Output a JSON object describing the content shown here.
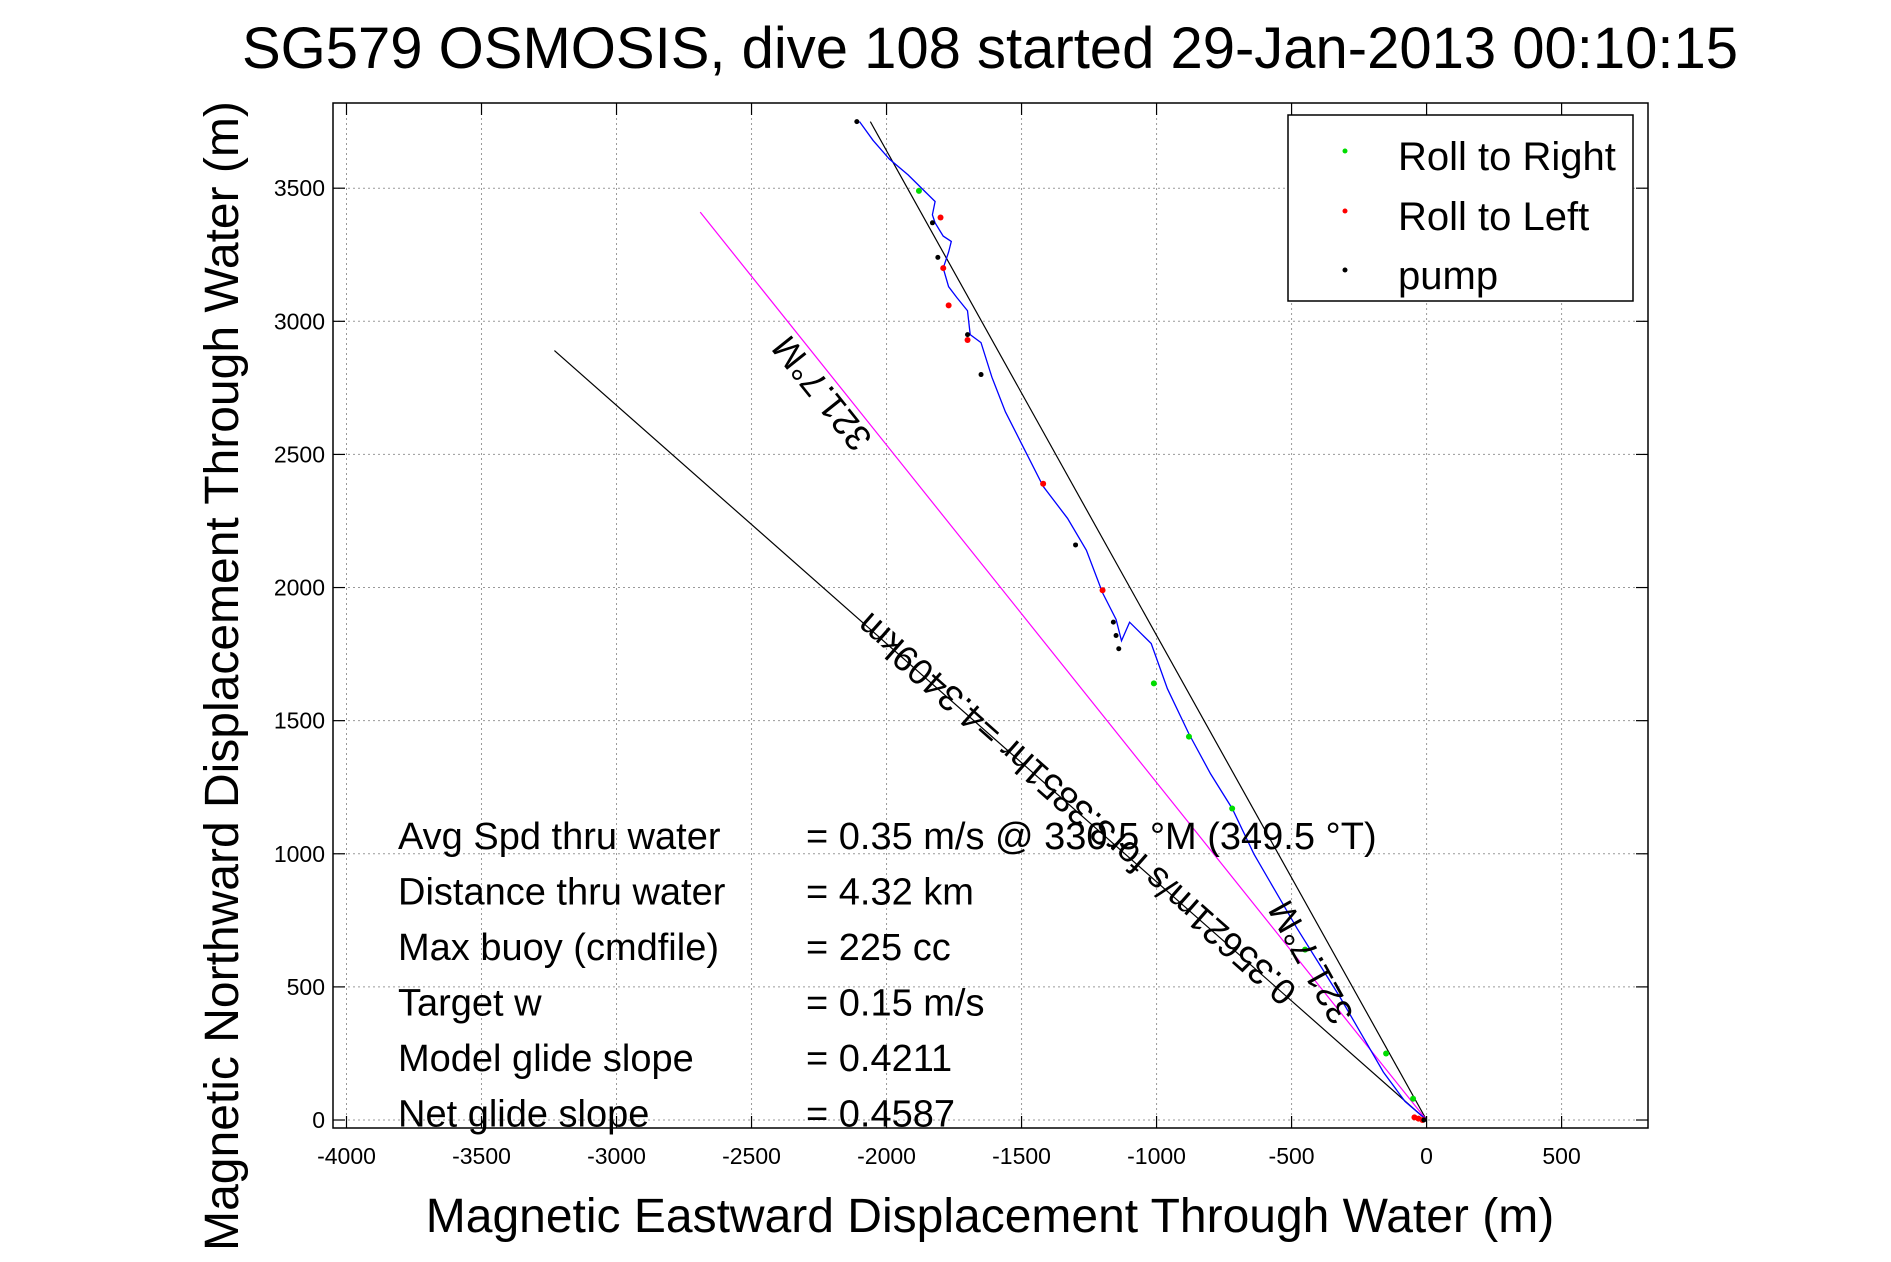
{
  "chart_data": {
    "type": "line",
    "title": "SG579 OSMOSIS, dive 108 started 29-Jan-2013 00:10:15",
    "xlabel": "Magnetic Eastward Displacement Through Water (m)",
    "ylabel": "Magnetic Northward Displacement Through Water (m)",
    "xlim": [
      -4050,
      820
    ],
    "ylim": [
      -30,
      3820
    ],
    "xticks": [
      -4000,
      -3500,
      -3000,
      -2500,
      -2000,
      -1500,
      -1000,
      -500,
      0,
      500
    ],
    "yticks": [
      0,
      500,
      1000,
      1500,
      2000,
      2500,
      3000,
      3500
    ],
    "grid": true,
    "legend_position": "top-right",
    "legend": [
      {
        "label": "Roll to Right",
        "color": "#00dd00"
      },
      {
        "label": "Roll to Left",
        "color": "#ff0000"
      },
      {
        "label": "pump",
        "color": "#000000"
      }
    ],
    "track": {
      "color": "#0000ff",
      "x": [
        0,
        -80,
        -160,
        -240,
        -320,
        -400,
        -480,
        -560,
        -640,
        -720,
        -800,
        -880,
        -960,
        -1020,
        -1100,
        -1130,
        -1150,
        -1200,
        -1260,
        -1330,
        -1420,
        -1500,
        -1560,
        -1610,
        -1650,
        -1690,
        -1700,
        -1740,
        -1770,
        -1790,
        -1770,
        -1760,
        -1790,
        -1820,
        -1830,
        -1820,
        -1860,
        -1920,
        -1990,
        -2050,
        -2100
      ],
      "y": [
        0,
        70,
        180,
        320,
        460,
        590,
        720,
        860,
        1000,
        1170,
        1300,
        1450,
        1620,
        1790,
        1870,
        1800,
        1880,
        1980,
        2140,
        2260,
        2380,
        2540,
        2660,
        2790,
        2920,
        2950,
        3040,
        3090,
        3130,
        3200,
        3260,
        3300,
        3320,
        3370,
        3400,
        3450,
        3490,
        3550,
        3610,
        3680,
        3750
      ]
    },
    "roll_right_points": {
      "color": "#00dd00",
      "x": [
        -50,
        -150,
        -450,
        -720,
        -880,
        -1010,
        -1880
      ],
      "y": [
        80,
        250,
        640,
        1170,
        1440,
        1640,
        3490
      ]
    },
    "roll_left_points": {
      "color": "#ff0000",
      "x": [
        -15,
        -30,
        -45,
        -1200,
        -1420,
        -1700,
        -1770,
        -1790,
        -1800
      ],
      "y": [
        0,
        5,
        10,
        1990,
        2390,
        2930,
        3060,
        3200,
        3390
      ]
    },
    "pump_points": {
      "color": "#000000",
      "x": [
        -10,
        -1140,
        -1150,
        -1160,
        -1300,
        -1650,
        -1700,
        -1810,
        -1830,
        -2110
      ],
      "y": [
        0,
        1770,
        1820,
        1870,
        2160,
        2800,
        2950,
        3240,
        3370,
        3750
      ]
    },
    "reference_lines": [
      {
        "color": "#000000",
        "x": [
          0,
          -2060
        ],
        "y": [
          0,
          3750
        ],
        "label": "321.7°M"
      },
      {
        "color": "#ff00ff",
        "x": [
          0,
          -2690
        ],
        "y": [
          0,
          3410
        ],
        "label": "321.7°M"
      },
      {
        "color": "#000000",
        "x": [
          0,
          -3230
        ],
        "y": [
          0,
          2890
        ],
        "label": "0.35621m/s for3.3851hr =4.3409km"
      }
    ],
    "annotations": [
      {
        "label": "Avg Spd thru water",
        "value": "=  0.35 m/s @ 330.5 °M (349.5 °T)"
      },
      {
        "label": "Distance thru water",
        "value": "=  4.32 km"
      },
      {
        "label": "Max buoy (cmdfile)",
        "value": "= 225 cc"
      },
      {
        "label": "Target w",
        "value": "= 0.15 m/s"
      },
      {
        "label": "Model glide slope",
        "value": "= 0.4211"
      },
      {
        "label": "Net glide slope",
        "value": "= 0.4587"
      }
    ]
  }
}
